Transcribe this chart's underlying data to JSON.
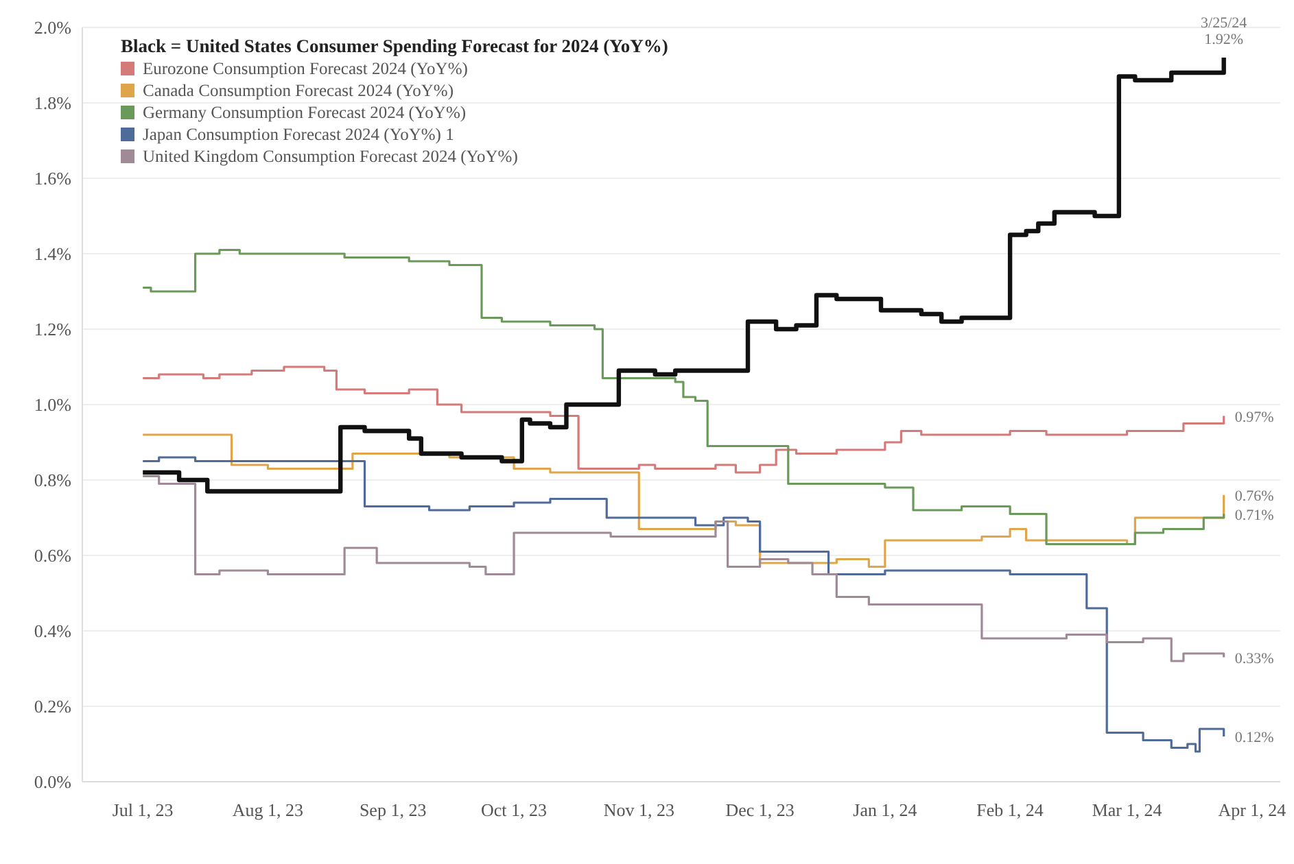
{
  "chart_data": {
    "type": "step",
    "legend_title": "Black = United States Consumer Spending Forecast for 2024 (YoY%)",
    "legend": "top left",
    "grid": "y",
    "line_style": "solid",
    "marker": "none",
    "xlim": [
      "2023-06-16",
      "2024-04-08"
    ],
    "xticks": [
      {
        "value": "2023-07-01",
        "label": "Jul 1, 23"
      },
      {
        "value": "2023-08-01",
        "label": "Aug 1, 23"
      },
      {
        "value": "2023-09-01",
        "label": "Sep 1, 23"
      },
      {
        "value": "2023-10-01",
        "label": "Oct 1, 23"
      },
      {
        "value": "2023-11-01",
        "label": "Nov 1, 23"
      },
      {
        "value": "2023-12-01",
        "label": "Dec 1, 23"
      },
      {
        "value": "2024-01-01",
        "label": "Jan 1, 24"
      },
      {
        "value": "2024-02-01",
        "label": "Feb 1, 24"
      },
      {
        "value": "2024-03-01",
        "label": "Mar 1, 24"
      },
      {
        "value": "2024-04-01",
        "label": "Apr 1, 24"
      }
    ],
    "ylim": [
      0,
      2
    ],
    "yticks": [
      {
        "value": 0,
        "label": "0.0%"
      },
      {
        "value": 0.2,
        "label": "0.2%"
      },
      {
        "value": 0.4,
        "label": "0.4%"
      },
      {
        "value": 0.6,
        "label": "0.6%"
      },
      {
        "value": 0.8,
        "label": "0.8%"
      },
      {
        "value": 1,
        "label": "1.0%"
      },
      {
        "value": 1.2,
        "label": "1.2%"
      },
      {
        "value": 1.4,
        "label": "1.4%"
      },
      {
        "value": 1.6,
        "label": "1.6%"
      },
      {
        "value": 1.8,
        "label": "1.8%"
      },
      {
        "value": 2,
        "label": "2.0%"
      }
    ],
    "series": [
      {
        "name": "Eurozone Consumption Forecast 2024 (YoY%)",
        "color": "#d47a78",
        "x": [
          "2023-07-01",
          "2023-07-05",
          "2023-07-16",
          "2023-07-20",
          "2023-07-28",
          "2023-08-05",
          "2023-08-15",
          "2023-08-18",
          "2023-08-25",
          "2023-09-05",
          "2023-09-12",
          "2023-09-18",
          "2023-10-05",
          "2023-10-10",
          "2023-10-17",
          "2023-11-01",
          "2023-11-05",
          "2023-11-20",
          "2023-11-25",
          "2023-12-01",
          "2023-12-05",
          "2023-12-10",
          "2023-12-20",
          "2024-01-01",
          "2024-01-05",
          "2024-01-10",
          "2024-02-01",
          "2024-02-10",
          "2024-03-01",
          "2024-03-15",
          "2024-03-25"
        ],
        "values": [
          1.07,
          1.08,
          1.07,
          1.08,
          1.09,
          1.1,
          1.09,
          1.04,
          1.03,
          1.04,
          1.0,
          0.98,
          0.98,
          0.97,
          0.83,
          0.84,
          0.83,
          0.84,
          0.82,
          0.84,
          0.88,
          0.87,
          0.88,
          0.9,
          0.93,
          0.92,
          0.93,
          0.92,
          0.93,
          0.95,
          0.97
        ]
      },
      {
        "name": "Canada Consumption Forecast 2024 (YoY%)",
        "color": "#e0a54a",
        "x": [
          "2023-07-01",
          "2023-07-23",
          "2023-08-01",
          "2023-08-22",
          "2023-09-15",
          "2023-10-01",
          "2023-10-10",
          "2023-11-01",
          "2023-11-20",
          "2023-11-25",
          "2023-12-01",
          "2023-12-10",
          "2023-12-20",
          "2023-12-28",
          "2024-01-01",
          "2024-01-25",
          "2024-02-01",
          "2024-02-05",
          "2024-03-01",
          "2024-03-03",
          "2024-03-20",
          "2024-03-25"
        ],
        "values": [
          0.92,
          0.84,
          0.83,
          0.87,
          0.86,
          0.83,
          0.82,
          0.67,
          0.69,
          0.68,
          0.58,
          0.58,
          0.59,
          0.57,
          0.64,
          0.65,
          0.67,
          0.64,
          0.63,
          0.7,
          0.7,
          0.76
        ]
      },
      {
        "name": "Germany Consumption Forecast 2024 (YoY%)",
        "color": "#6a9a5a",
        "x": [
          "2023-07-01",
          "2023-07-03",
          "2023-07-14",
          "2023-07-20",
          "2023-07-25",
          "2023-08-20",
          "2023-09-05",
          "2023-09-15",
          "2023-09-23",
          "2023-09-28",
          "2023-10-10",
          "2023-10-21",
          "2023-10-23",
          "2023-11-10",
          "2023-11-12",
          "2023-11-15",
          "2023-11-18",
          "2023-12-01",
          "2023-12-08",
          "2024-01-01",
          "2024-01-08",
          "2024-01-20",
          "2024-02-01",
          "2024-02-10",
          "2024-03-03",
          "2024-03-10",
          "2024-03-20",
          "2024-03-25"
        ],
        "values": [
          1.31,
          1.3,
          1.4,
          1.41,
          1.4,
          1.39,
          1.38,
          1.37,
          1.23,
          1.22,
          1.21,
          1.2,
          1.07,
          1.06,
          1.02,
          1.01,
          0.89,
          0.89,
          0.79,
          0.78,
          0.72,
          0.73,
          0.71,
          0.63,
          0.66,
          0.67,
          0.7,
          0.71
        ]
      },
      {
        "name": "Japan Consumption Forecast 2024 (YoY%) 1",
        "color": "#4f6b9a",
        "x": [
          "2023-07-01",
          "2023-07-05",
          "2023-07-14",
          "2023-08-25",
          "2023-09-10",
          "2023-09-20",
          "2023-10-01",
          "2023-10-10",
          "2023-10-24",
          "2023-11-15",
          "2023-11-22",
          "2023-11-28",
          "2023-12-01",
          "2023-12-18",
          "2024-01-01",
          "2024-02-01",
          "2024-02-20",
          "2024-02-25",
          "2024-03-05",
          "2024-03-12",
          "2024-03-16",
          "2024-03-18",
          "2024-03-19",
          "2024-03-25"
        ],
        "values": [
          0.85,
          0.86,
          0.85,
          0.73,
          0.72,
          0.73,
          0.74,
          0.75,
          0.7,
          0.68,
          0.7,
          0.69,
          0.61,
          0.55,
          0.56,
          0.55,
          0.46,
          0.13,
          0.11,
          0.09,
          0.1,
          0.08,
          0.14,
          0.12
        ]
      },
      {
        "name": "United Kingdom Consumption Forecast 2024 (YoY%)",
        "color": "#a08a98",
        "x": [
          "2023-07-01",
          "2023-07-05",
          "2023-07-14",
          "2023-07-20",
          "2023-08-01",
          "2023-08-20",
          "2023-08-28",
          "2023-09-20",
          "2023-09-24",
          "2023-10-01",
          "2023-10-25",
          "2023-11-20",
          "2023-11-23",
          "2023-12-01",
          "2023-12-08",
          "2023-12-14",
          "2023-12-20",
          "2023-12-28",
          "2024-01-25",
          "2024-02-15",
          "2024-02-25",
          "2024-03-05",
          "2024-03-12",
          "2024-03-15",
          "2024-03-25"
        ],
        "values": [
          0.81,
          0.79,
          0.55,
          0.56,
          0.55,
          0.62,
          0.58,
          0.57,
          0.55,
          0.66,
          0.65,
          0.69,
          0.57,
          0.59,
          0.58,
          0.55,
          0.49,
          0.47,
          0.38,
          0.39,
          0.37,
          0.38,
          0.32,
          0.34,
          0.33
        ]
      },
      {
        "color": "#111111",
        "x": [
          "2023-07-01",
          "2023-07-10",
          "2023-07-17",
          "2023-08-19",
          "2023-08-25",
          "2023-09-05",
          "2023-09-08",
          "2023-09-18",
          "2023-09-28",
          "2023-10-03",
          "2023-10-05",
          "2023-10-10",
          "2023-10-14",
          "2023-10-27",
          "2023-11-05",
          "2023-11-10",
          "2023-11-28",
          "2023-12-05",
          "2023-12-10",
          "2023-12-15",
          "2023-12-20",
          "2023-12-31",
          "2024-01-10",
          "2024-01-15",
          "2024-01-20",
          "2024-02-01",
          "2024-02-05",
          "2024-02-08",
          "2024-02-12",
          "2024-02-22",
          "2024-02-28",
          "2024-03-03",
          "2024-03-08",
          "2024-03-12",
          "2024-03-24",
          "2024-03-25"
        ],
        "values": [
          0.82,
          0.8,
          0.77,
          0.94,
          0.93,
          0.91,
          0.87,
          0.86,
          0.85,
          0.96,
          0.95,
          0.94,
          1.0,
          1.09,
          1.08,
          1.09,
          1.22,
          1.2,
          1.21,
          1.29,
          1.28,
          1.25,
          1.24,
          1.22,
          1.23,
          1.45,
          1.46,
          1.48,
          1.51,
          1.5,
          1.87,
          1.86,
          1.86,
          1.88,
          1.88,
          1.92
        ]
      }
    ],
    "annotations": [
      {
        "text": "3/25/24",
        "x": "2024-03-25",
        "y": 1.92
      },
      {
        "text": "1.92%",
        "x": "2024-03-25",
        "y": 1.92
      },
      {
        "text": "0.97%",
        "x": "2024-03-25",
        "y": 0.97
      },
      {
        "text": "0.76%",
        "x": "2024-03-25",
        "y": 0.76
      },
      {
        "text": "0.71%",
        "x": "2024-03-25",
        "y": 0.71
      },
      {
        "text": "0.33%",
        "x": "2024-03-25",
        "y": 0.33
      },
      {
        "text": "0.12%",
        "x": "2024-03-25",
        "y": 0.12
      }
    ]
  }
}
